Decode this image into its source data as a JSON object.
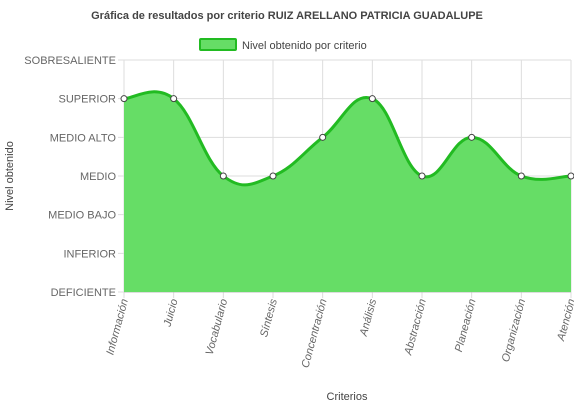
{
  "chart_data": {
    "type": "area",
    "title": "Gráfica de resultados por criterio RUIZ ARELLANO PATRICIA GUADALUPE",
    "xlabel": "Criterios",
    "ylabel": "Nivel obtenido",
    "y_levels": [
      "DEFICIENTE",
      "INFERIOR",
      "MEDIO BAJO",
      "MEDIO",
      "MEDIO ALTO",
      "SUPERIOR",
      "SOBRESALIENTE"
    ],
    "categories": [
      "Información",
      "Juicio",
      "Vocabulario",
      "Síntesis",
      "Concentración",
      "Análisis",
      "Abstracción",
      "Planeación",
      "Organización",
      "Atención"
    ],
    "series": [
      {
        "name": "Nivel obtenido por criterio",
        "values": [
          5,
          5,
          3,
          3,
          4,
          5,
          3,
          4,
          3,
          3
        ],
        "labels": [
          "SUPERIOR",
          "SUPERIOR",
          "MEDIO",
          "MEDIO",
          "MEDIO ALTO",
          "SUPERIOR",
          "MEDIO",
          "MEDIO ALTO",
          "MEDIO",
          "MEDIO"
        ]
      }
    ],
    "ylim": [
      0,
      6
    ],
    "legend_position": "top-center",
    "grid": true,
    "colors": {
      "fill": "#66dd66",
      "line": "#22bb22",
      "point_fill": "#ffffff",
      "point_stroke": "#444444",
      "grid": "#dddddd"
    }
  }
}
